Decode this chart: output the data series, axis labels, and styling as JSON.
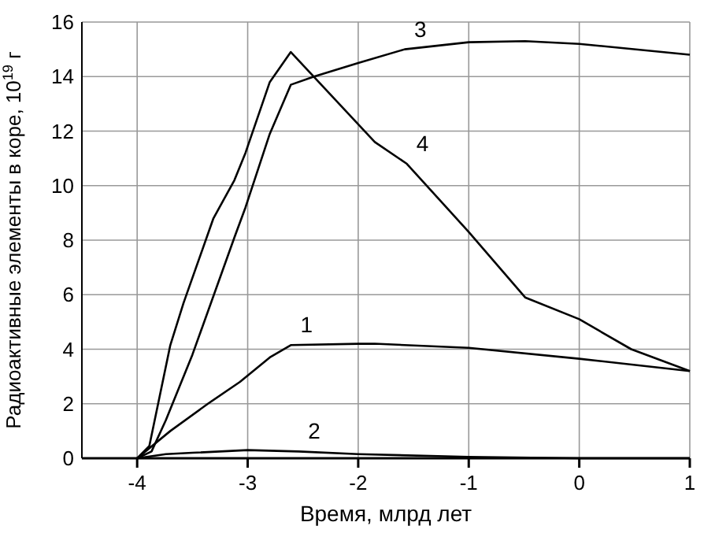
{
  "chart_data": {
    "type": "line",
    "xlabel": "Время, млрд лет",
    "ylabel": "Радиоактивные элементы в коре, 10$^{19}$ г",
    "xlim": [
      -4.5,
      1
    ],
    "xticks": [
      -4,
      -3,
      -2,
      -1,
      0,
      1
    ],
    "ylim": [
      0,
      16
    ],
    "yticks": [
      0,
      2,
      4,
      6,
      8,
      10,
      12,
      14,
      16
    ],
    "grid": true,
    "marker": "none",
    "line_style": "solid",
    "series": [
      {
        "color": "#000000",
        "x": [
          -4,
          -3.7,
          -3.36,
          -3.07,
          -2.8,
          -2.61,
          -2,
          -1.85,
          -1,
          0,
          1
        ],
        "values": [
          0,
          1.0,
          2.0,
          2.8,
          3.7,
          4.15,
          4.2,
          4.2,
          4.05,
          3.65,
          3.2
        ]
      },
      {
        "color": "#000000",
        "x": [
          -4,
          -3.74,
          -3.5,
          -3,
          -2.54,
          -2,
          -1,
          0,
          1
        ],
        "values": [
          0,
          0.15,
          0.2,
          0.3,
          0.25,
          0.15,
          0.05,
          0,
          0
        ]
      },
      {
        "color": "#000000",
        "x": [
          -4,
          -3.87,
          -3.74,
          -3.5,
          -3.12,
          -3.02,
          -2.8,
          -2.61,
          -2.4,
          -2,
          -1.58,
          -1,
          -0.49,
          0,
          1
        ],
        "values": [
          0,
          0.25,
          1.4,
          3.8,
          8.1,
          9.2,
          11.9,
          13.7,
          14.0,
          14.5,
          15.0,
          15.26,
          15.3,
          15.2,
          14.8
        ]
      },
      {
        "color": "#000000",
        "x": [
          -4,
          -3.89,
          -3.7,
          -3.58,
          -3.31,
          -3.12,
          -3.02,
          -2.8,
          -2.61,
          -1.85,
          -1.56,
          -1,
          -0.49,
          0,
          0.47,
          1
        ],
        "values": [
          0,
          0.45,
          4.15,
          5.7,
          8.8,
          10.2,
          11.2,
          13.8,
          14.9,
          11.6,
          10.8,
          8.3,
          5.9,
          5.1,
          4.0,
          3.2
        ]
      }
    ],
    "annotations": [
      {
        "text": "1",
        "x": -2.61,
        "y": 4.15
      },
      {
        "text": "2",
        "x": -2.54,
        "y": 0.25
      },
      {
        "text": "3",
        "x": -1.58,
        "y": 15.0
      },
      {
        "text": "4",
        "x": -1.56,
        "y": 10.8
      }
    ]
  }
}
